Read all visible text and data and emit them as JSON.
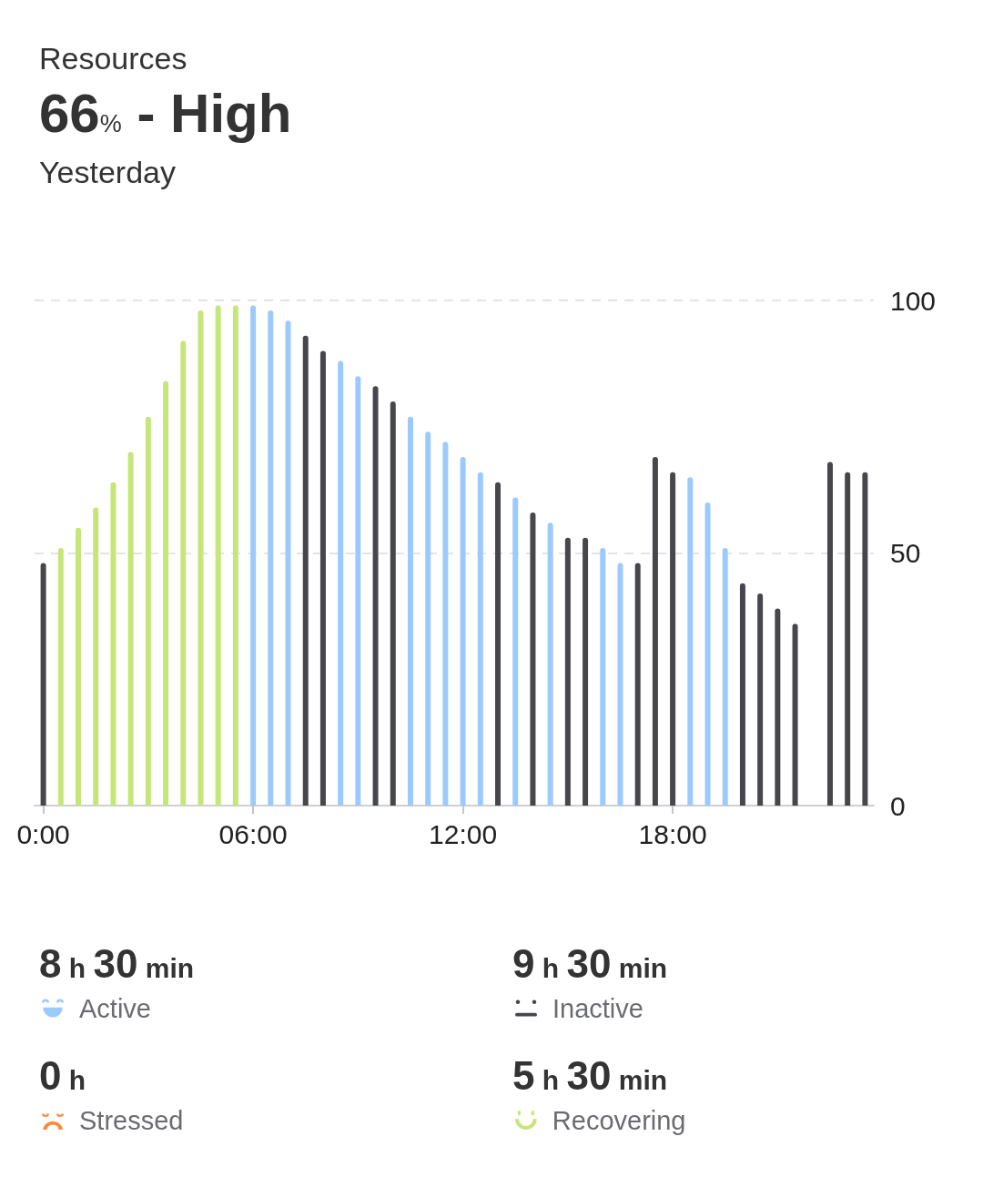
{
  "chart_data": {
    "type": "bar",
    "title": "Resources",
    "subtitle": "66% - High",
    "annotations": [
      "Yesterday",
      "8 h 30 min",
      "9 h 30 min",
      "0 h",
      "5 h 30 min",
      "Stressed"
    ],
    "categories": [
      "0:00",
      null,
      null,
      null,
      null,
      null,
      null,
      null,
      null,
      null,
      null,
      null,
      "06:00",
      null,
      null,
      null,
      null,
      null,
      null,
      null,
      null,
      null,
      null,
      null,
      "12:00",
      null,
      null,
      null,
      null,
      null,
      null,
      null,
      null,
      null,
      null,
      null,
      "18:00",
      null,
      null,
      null,
      null,
      null,
      null,
      null,
      null,
      null,
      null,
      null
    ],
    "series": [
      {
        "name": "Active",
        "color": "#9ccaff",
        "values": [
          null,
          null,
          null,
          null,
          null,
          null,
          null,
          null,
          null,
          null,
          null,
          null,
          99,
          98,
          96,
          null,
          null,
          88,
          85,
          null,
          null,
          77,
          74,
          72,
          69,
          66,
          null,
          61,
          null,
          56,
          null,
          null,
          51,
          48,
          null,
          null,
          null,
          65,
          60,
          51,
          null,
          null,
          null,
          null,
          null,
          null,
          null,
          null
        ]
      },
      {
        "name": "Inactive",
        "color": "#46474b",
        "values": [
          48,
          null,
          null,
          null,
          null,
          null,
          null,
          null,
          null,
          null,
          null,
          null,
          null,
          null,
          null,
          93,
          90,
          null,
          null,
          83,
          80,
          null,
          null,
          null,
          null,
          null,
          64,
          null,
          58,
          null,
          53,
          53,
          null,
          null,
          48,
          69,
          66,
          null,
          null,
          null,
          44,
          42,
          39,
          36,
          null,
          68,
          66,
          66
        ]
      },
      {
        "name": "Recovering",
        "color": "#c6e67a",
        "values": [
          null,
          51,
          55,
          59,
          64,
          70,
          77,
          84,
          92,
          98,
          99,
          99,
          null,
          null,
          null,
          null,
          null,
          null,
          null,
          null,
          null,
          null,
          null,
          null,
          null,
          null,
          null,
          null,
          null,
          null,
          null,
          null,
          null,
          null,
          null,
          null,
          null,
          null,
          null,
          null,
          null,
          null,
          null,
          null,
          null,
          null,
          null,
          null
        ]
      }
    ],
    "stacked": true,
    "ylim": [
      0,
      100
    ],
    "yticks": [
      0,
      50,
      100
    ],
    "grid": "y",
    "legend": "bottom"
  }
}
